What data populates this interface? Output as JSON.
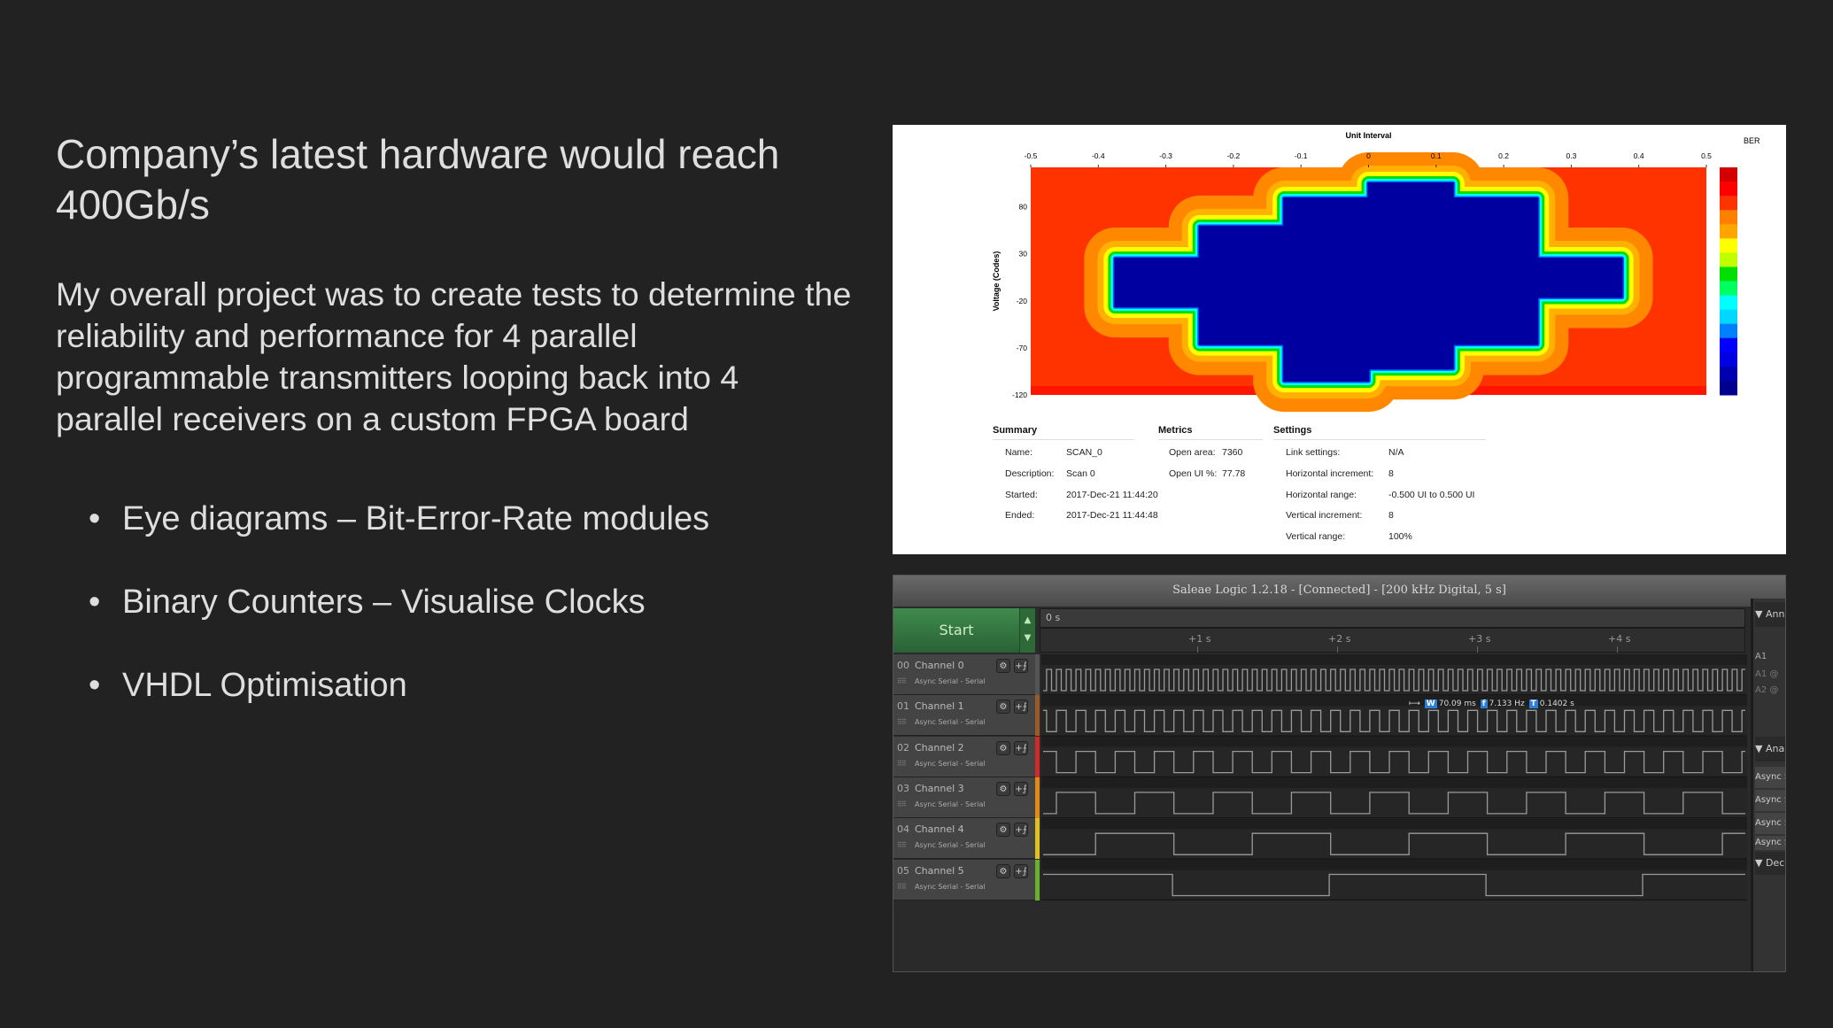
{
  "slide": {
    "title": "Company’s latest hardware would reach 400Gb/s",
    "paragraph": "My overall project was to create tests to determine the reliability and performance for 4 parallel programmable transmitters looping back into 4 parallel receivers on a custom FPGA board",
    "bullet_glyph": "•",
    "bullets": [
      "Eye diagrams – Bit-Error-Rate modules",
      "Binary Counters – Visualise Clocks",
      "VHDL Optimisation"
    ]
  },
  "chart_data": {
    "type": "heatmap",
    "title": "Unit Interval",
    "xlabel": "Unit Interval",
    "ylabel": "Voltage (Codes)",
    "legend_title": "BER",
    "xlim": [
      -0.5,
      0.5
    ],
    "ylim": [
      -120,
      122
    ],
    "x_ticks": [
      "-0.5",
      "-0.4",
      "-0.3",
      "-0.2",
      "-0.1",
      "0",
      "0.1",
      "0.2",
      "0.3",
      "0.4",
      "0.5"
    ],
    "y_ticks": [
      "80",
      "30",
      "-20",
      "-70",
      "-120"
    ],
    "open_eye_contour": [
      [
        -0.125,
        89
      ],
      [
        0,
        89
      ],
      [
        0,
        105
      ],
      [
        0.125,
        105
      ],
      [
        0.125,
        89
      ],
      [
        0.25,
        89
      ],
      [
        0.25,
        25
      ],
      [
        0.375,
        25
      ],
      [
        0.375,
        -16
      ],
      [
        0.25,
        -16
      ],
      [
        0.25,
        -66
      ],
      [
        0.125,
        -66
      ],
      [
        0.125,
        -92
      ],
      [
        0,
        -92
      ],
      [
        0,
        -105
      ],
      [
        -0.125,
        -105
      ],
      [
        -0.125,
        -66
      ],
      [
        -0.25,
        -66
      ],
      [
        -0.25,
        -26
      ],
      [
        -0.375,
        -26
      ],
      [
        -0.375,
        25
      ],
      [
        -0.25,
        25
      ],
      [
        -0.25,
        59
      ],
      [
        -0.125,
        59
      ]
    ],
    "colors": {
      "background": "#ff3300",
      "open": "#0000a0",
      "bands": [
        "#ff8800",
        "#ffb000",
        "#ffff00",
        "#00e000",
        "#00ffff",
        "#0060ff"
      ]
    },
    "colorbar": [
      "#d40000",
      "#ff0000",
      "#ff3300",
      "#ff8000",
      "#ffa500",
      "#ffff00",
      "#c0ff00",
      "#00e000",
      "#00ff60",
      "#00ffff",
      "#00d8ff",
      "#0080ff",
      "#0000ff",
      "#0000e0",
      "#0000b0",
      "#000090"
    ]
  },
  "summary": {
    "headers": {
      "summary": "Summary",
      "metrics": "Metrics",
      "settings": "Settings"
    },
    "summary_rows": [
      [
        "Name:",
        "SCAN_0"
      ],
      [
        "Description:",
        "Scan 0"
      ],
      [
        "Started:",
        "2017-Dec-21 11:44:20"
      ],
      [
        "Ended:",
        "2017-Dec-21 11:44:48"
      ]
    ],
    "metrics_rows": [
      [
        "Open area:",
        "7360"
      ],
      [
        "Open UI %:",
        "77.78"
      ]
    ],
    "settings_rows": [
      [
        "Link settings:",
        "N/A"
      ],
      [
        "Horizontal increment:",
        "8"
      ],
      [
        "Horizontal range:",
        "-0.500 UI to 0.500 UI"
      ],
      [
        "Vertical increment:",
        "8"
      ],
      [
        "Vertical range:",
        "100%"
      ]
    ]
  },
  "saleae": {
    "title": "Saleae Logic 1.2.18 - [Connected] - [200 kHz Digital, 5 s]",
    "start_label": "Start",
    "arrow_up": "▲",
    "arrow_down": "▼",
    "time_origin": "0 s",
    "time_ticks": [
      "+1 s",
      "+2 s",
      "+3 s",
      "+4 s"
    ],
    "measurement": {
      "width_icon": "W",
      "width": "70.09 ms",
      "freq_icon": "f",
      "freq": "7.133 Hz",
      "period_icon": "T",
      "period": "0.1402 s"
    },
    "channels": [
      {
        "num": "00",
        "name": "Channel 0",
        "analyzer": "Async Serial - Serial",
        "color": "#555555",
        "period_s": 0.07,
        "phase_s": 0
      },
      {
        "num": "01",
        "name": "Channel 1",
        "analyzer": "Async Serial - Serial",
        "color": "#9a5a2a",
        "period_s": 0.14,
        "phase_s": 0
      },
      {
        "num": "02",
        "name": "Channel 2",
        "analyzer": "Async Serial - Serial",
        "color": "#d02a2a",
        "period_s": 0.28,
        "phase_s": 0.14
      },
      {
        "num": "03",
        "name": "Channel 3",
        "analyzer": "Async Serial - Serial",
        "color": "#e08a1a",
        "period_s": 0.56,
        "phase_s": 0
      },
      {
        "num": "04",
        "name": "Channel 4",
        "analyzer": "Async Serial - Serial",
        "color": "#e0c020",
        "period_s": 1.12,
        "phase_s": 0.28
      },
      {
        "num": "05",
        "name": "Channel 5",
        "analyzer": "Async Serial - Serial",
        "color": "#6ab030",
        "period_s": 2.24,
        "phase_s": -0.29
      }
    ],
    "right_panel": {
      "annotations": "▼ Annotations",
      "a1_badge": "A1",
      "a1": "A1 @",
      "a2": "A2 @",
      "analyzers": "▼ Analyzers",
      "analyzer_items": [
        "Async Serial",
        "Async Serial",
        "Async Serial",
        "Async Serial"
      ],
      "decoded": "▼ Decoded"
    }
  }
}
